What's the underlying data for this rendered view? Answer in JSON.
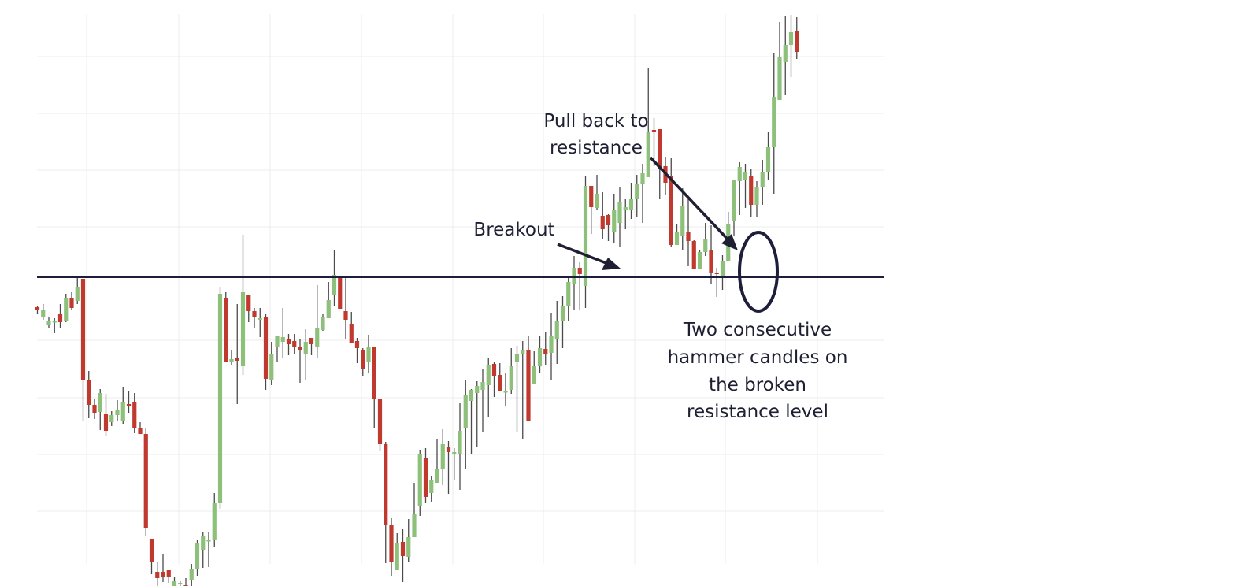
{
  "chart_data": {
    "type": "candlestick",
    "title": "",
    "xlabel": "",
    "ylabel": "",
    "ylim": [
      0,
      744
    ],
    "grid": true,
    "colors": {
      "up": "#8dc07a",
      "down": "#c0392f",
      "wick": "#4a4a4a",
      "grid": "#ececec",
      "resistance": "#1e1e3c",
      "annotation": "#1f1f33"
    },
    "resistance_level": 392,
    "candles": [
      [
        354,
        350,
        345,
        356
      ],
      [
        342,
        350,
        358,
        338
      ],
      [
        332,
        336,
        342,
        328
      ],
      [
        336,
        336,
        340,
        321
      ],
      [
        345,
        335,
        358,
        327
      ],
      [
        337,
        366,
        371,
        335
      ],
      [
        366,
        353,
        373,
        351
      ],
      [
        362,
        380,
        394,
        358
      ],
      [
        390,
        261,
        390,
        209
      ],
      [
        261,
        230,
        273,
        213
      ],
      [
        230,
        220,
        237,
        212
      ],
      [
        221,
        245,
        250,
        198
      ],
      [
        219,
        197,
        244,
        191
      ],
      [
        208,
        217,
        222,
        203
      ],
      [
        217,
        223,
        236,
        209
      ],
      [
        210,
        234,
        253,
        206
      ],
      [
        231,
        228,
        248,
        220
      ],
      [
        233,
        200,
        245,
        194
      ],
      [
        200,
        193,
        208,
        193
      ],
      [
        193,
        74,
        200,
        64
      ],
      [
        60,
        30,
        60,
        15
      ],
      [
        18,
        10,
        30,
        0
      ],
      [
        18,
        12,
        41,
        5
      ],
      [
        20,
        12,
        20,
        4
      ],
      [
        0,
        6,
        11,
        0
      ],
      [
        4,
        4,
        6,
        0
      ],
      [
        1,
        0,
        10,
        0
      ],
      [
        8,
        22,
        28,
        0
      ],
      [
        21,
        55,
        58,
        13
      ],
      [
        46,
        63,
        68,
        23
      ],
      [
        58,
        58,
        68,
        24
      ],
      [
        58,
        106,
        118,
        50
      ],
      [
        106,
        371,
        380,
        98
      ],
      [
        366,
        285,
        373,
        287
      ],
      [
        285,
        288,
        300,
        281
      ],
      [
        289,
        286,
        358,
        231
      ],
      [
        279,
        373,
        446,
        268
      ],
      [
        369,
        349,
        364,
        335
      ],
      [
        349,
        341,
        353,
        327
      ],
      [
        338,
        340,
        353,
        316
      ],
      [
        341,
        263,
        345,
        249
      ],
      [
        261,
        295,
        310,
        255
      ],
      [
        303,
        318,
        318,
        285
      ],
      [
        310,
        316,
        353,
        290
      ],
      [
        314,
        307,
        320,
        293
      ],
      [
        311,
        304,
        320,
        294
      ],
      [
        304,
        300,
        314,
        258
      ],
      [
        295,
        310,
        326,
        261
      ],
      [
        315,
        307,
        311,
        293
      ],
      [
        303,
        327,
        382,
        290
      ],
      [
        325,
        341,
        345,
        324
      ],
      [
        340,
        363,
        386,
        342
      ],
      [
        369,
        395,
        426,
        356
      ],
      [
        394,
        352,
        390,
        361
      ],
      [
        349,
        338,
        392,
        313
      ],
      [
        333,
        308,
        348,
        309
      ],
      [
        311,
        302,
        315,
        283
      ],
      [
        300,
        275,
        302,
        267
      ],
      [
        285,
        303,
        319,
        270
      ],
      [
        304,
        237,
        302,
        200
      ],
      [
        237,
        180,
        234,
        172
      ],
      [
        180,
        77,
        183,
        29
      ],
      [
        77,
        30,
        86,
        13
      ],
      [
        20,
        54,
        67,
        23
      ],
      [
        56,
        38,
        72,
        5
      ],
      [
        37,
        62,
        85,
        30
      ],
      [
        62,
        91,
        131,
        67
      ],
      [
        102,
        168,
        173,
        89
      ],
      [
        162,
        113,
        175,
        106
      ],
      [
        118,
        135,
        140,
        107
      ],
      [
        131,
        149,
        186,
        137
      ],
      [
        149,
        180,
        199,
        128
      ],
      [
        176,
        170,
        184,
        117
      ],
      [
        168,
        170,
        175,
        135
      ],
      [
        168,
        197,
        232,
        122
      ],
      [
        200,
        243,
        262,
        148
      ],
      [
        235,
        249,
        250,
        167
      ],
      [
        245,
        254,
        260,
        176
      ],
      [
        249,
        259,
        276,
        196
      ],
      [
        255,
        280,
        290,
        214
      ],
      [
        282,
        267,
        285,
        240
      ],
      [
        268,
        247,
        283,
        251
      ],
      [
        246,
        247,
        270,
        228
      ],
      [
        249,
        279,
        302,
        244
      ],
      [
        284,
        294,
        305,
        196
      ],
      [
        295,
        300,
        311,
        186
      ],
      [
        300,
        210,
        317,
        212
      ],
      [
        256,
        279,
        298,
        260
      ],
      [
        279,
        302,
        317,
        271
      ],
      [
        301,
        295,
        322,
        280
      ],
      [
        296,
        317,
        346,
        262
      ],
      [
        314,
        337,
        362,
        282
      ],
      [
        337,
        355,
        368,
        302
      ],
      [
        355,
        386,
        394,
        337
      ],
      [
        383,
        404,
        419,
        350
      ],
      [
        404,
        396,
        411,
        350
      ],
      [
        381,
        508,
        520,
        353
      ],
      [
        508,
        481,
        496,
        447
      ],
      [
        480,
        498,
        522,
        478
      ],
      [
        470,
        453,
        500,
        441
      ],
      [
        471,
        458,
        472,
        438
      ],
      [
        450,
        478,
        498,
        435
      ],
      [
        461,
        487,
        507,
        430
      ],
      [
        478,
        481,
        491,
        453
      ],
      [
        477,
        491,
        512,
        466
      ],
      [
        491,
        510,
        522,
        469
      ],
      [
        510,
        524,
        536,
        461
      ],
      [
        519,
        576,
        658,
        533
      ],
      [
        579,
        576,
        594,
        533
      ],
      [
        580,
        530,
        547,
        491
      ],
      [
        533,
        512,
        545,
        497
      ],
      [
        521,
        433,
        543,
        430
      ],
      [
        433,
        450,
        460,
        436
      ],
      [
        445,
        482,
        505,
        427
      ],
      [
        450,
        438,
        491,
        406
      ],
      [
        438,
        403,
        439,
        404
      ],
      [
        403,
        424,
        412,
        427
      ],
      [
        424,
        440,
        461,
        419
      ],
      [
        426,
        398,
        458,
        384
      ],
      [
        398,
        396,
        404,
        367
      ],
      [
        392,
        413,
        420,
        376
      ],
      [
        413,
        460,
        475,
        431
      ],
      [
        464,
        515,
        515,
        444
      ],
      [
        514,
        532,
        538,
        471
      ],
      [
        516,
        526,
        536,
        480
      ],
      [
        521,
        484,
        530,
        468
      ],
      [
        484,
        506,
        514,
        469
      ],
      [
        506,
        526,
        541,
        484
      ],
      [
        525,
        557,
        577,
        515
      ],
      [
        557,
        621,
        677,
        498
      ],
      [
        617,
        671,
        716,
        631
      ],
      [
        665,
        687,
        724,
        623
      ],
      [
        687,
        703,
        725,
        646
      ],
      [
        705,
        678,
        723,
        669
      ]
    ],
    "annotations": {
      "pull_back_line1": "Pull back to",
      "pull_back_line2": "resistance",
      "breakout": "Breakout",
      "hammer_line1": "Two consecutive",
      "hammer_line2": "hammer candles on",
      "hammer_line3": "the broken",
      "hammer_line4": "resistance level"
    }
  }
}
